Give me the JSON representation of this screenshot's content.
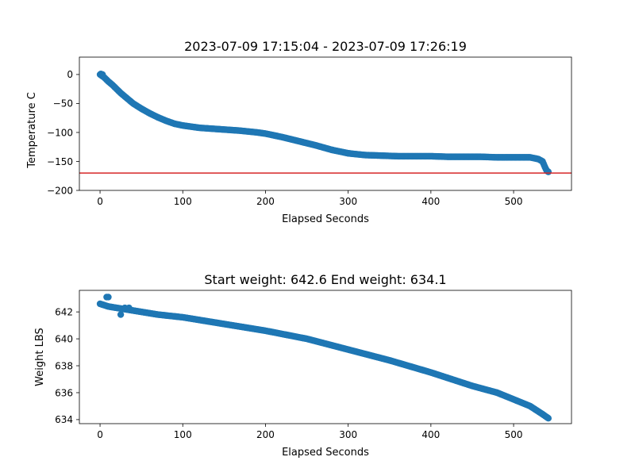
{
  "chart_data": [
    {
      "type": "scatter",
      "title": "2023-07-09 17:15:04 - 2023-07-09 17:26:19",
      "xlabel": "Elapsed Seconds",
      "ylabel": "Temperature C",
      "xlim": [
        -25,
        570
      ],
      "ylim": [
        -200,
        30
      ],
      "xticks": [
        0,
        100,
        200,
        300,
        400,
        500
      ],
      "yticks": [
        0,
        -50,
        -100,
        -150,
        -200
      ],
      "grid": false,
      "marker_color": "#1f77b4",
      "reference_line": {
        "y": -170,
        "color": "#d62728"
      },
      "curve": [
        [
          0,
          0
        ],
        [
          5,
          -5
        ],
        [
          10,
          -12
        ],
        [
          15,
          -18
        ],
        [
          20,
          -25
        ],
        [
          25,
          -32
        ],
        [
          30,
          -38
        ],
        [
          35,
          -44
        ],
        [
          40,
          -50
        ],
        [
          50,
          -59
        ],
        [
          60,
          -67
        ],
        [
          70,
          -74
        ],
        [
          80,
          -80
        ],
        [
          90,
          -85
        ],
        [
          100,
          -88
        ],
        [
          110,
          -90
        ],
        [
          120,
          -92
        ],
        [
          130,
          -93
        ],
        [
          150,
          -95
        ],
        [
          170,
          -97
        ],
        [
          190,
          -100
        ],
        [
          200,
          -102
        ],
        [
          220,
          -108
        ],
        [
          240,
          -115
        ],
        [
          260,
          -122
        ],
        [
          280,
          -130
        ],
        [
          300,
          -136
        ],
        [
          320,
          -139
        ],
        [
          340,
          -140
        ],
        [
          360,
          -141
        ],
        [
          380,
          -141
        ],
        [
          400,
          -141
        ],
        [
          420,
          -142
        ],
        [
          440,
          -142
        ],
        [
          460,
          -142
        ],
        [
          480,
          -143
        ],
        [
          500,
          -143
        ],
        [
          520,
          -143
        ],
        [
          530,
          -146
        ],
        [
          535,
          -150
        ],
        [
          538,
          -160
        ],
        [
          540,
          -166
        ],
        [
          542,
          -168
        ]
      ],
      "outliers": [
        [
          1,
          1
        ],
        [
          3,
          0
        ]
      ]
    },
    {
      "type": "scatter",
      "title": "Start weight: 642.6 End weight: 634.1",
      "xlabel": "Elapsed Seconds",
      "ylabel": "Weight LBS",
      "xlim": [
        -25,
        570
      ],
      "ylim": [
        633.7,
        643.6
      ],
      "xticks": [
        0,
        100,
        200,
        300,
        400,
        500
      ],
      "yticks": [
        634,
        636,
        638,
        640,
        642
      ],
      "grid": false,
      "marker_color": "#1f77b4",
      "start_weight": 642.6,
      "end_weight": 634.1,
      "curve": [
        [
          0,
          642.6
        ],
        [
          10,
          642.4
        ],
        [
          20,
          642.3
        ],
        [
          30,
          642.2
        ],
        [
          50,
          642.0
        ],
        [
          70,
          641.8
        ],
        [
          100,
          641.6
        ],
        [
          150,
          641.1
        ],
        [
          200,
          640.6
        ],
        [
          250,
          640.0
        ],
        [
          300,
          639.2
        ],
        [
          350,
          638.4
        ],
        [
          400,
          637.5
        ],
        [
          450,
          636.5
        ],
        [
          480,
          636.0
        ],
        [
          500,
          635.5
        ],
        [
          520,
          635.0
        ],
        [
          535,
          634.4
        ],
        [
          542,
          634.1
        ]
      ],
      "outliers": [
        [
          8,
          643.1
        ],
        [
          10,
          643.1
        ],
        [
          25,
          641.8
        ],
        [
          30,
          642.3
        ],
        [
          35,
          642.3
        ]
      ]
    }
  ]
}
